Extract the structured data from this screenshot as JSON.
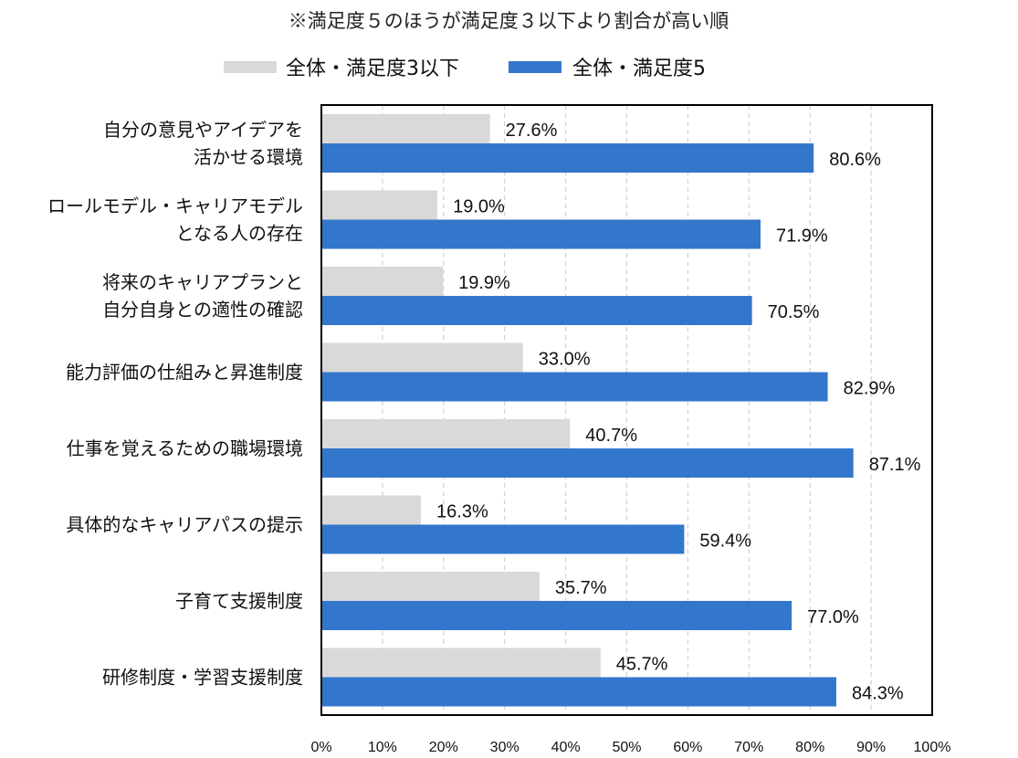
{
  "chart_data": {
    "type": "bar",
    "orientation": "horizontal",
    "note": "※満足度５のほうが満足度３以下より割合が高い順",
    "legend_position": "top",
    "categories": [
      [
        "自分の意見やアイデアを",
        "活かせる環境"
      ],
      [
        "ロールモデル・キャリアモデル",
        "となる人の存在"
      ],
      [
        "将来のキャリアプランと",
        "自分自身との適性の確認"
      ],
      [
        "能力評価の仕組みと昇進制度"
      ],
      [
        "仕事を覚えるための職場環境"
      ],
      [
        "具体的なキャリアパスの提示"
      ],
      [
        "子育て支援制度"
      ],
      [
        "研修制度・学習支援制度"
      ]
    ],
    "series": [
      {
        "name": "全体・満足度3以下",
        "color": "#d9d9d9",
        "values": [
          27.6,
          19.0,
          19.9,
          33.0,
          40.7,
          16.3,
          35.7,
          45.7
        ],
        "labels": [
          "27.6%",
          "19.0%",
          "19.9%",
          "33.0%",
          "40.7%",
          "16.3%",
          "35.7%",
          "45.7%"
        ]
      },
      {
        "name": "全体・満足度5",
        "color": "#3377cc",
        "values": [
          80.6,
          71.9,
          70.5,
          82.9,
          87.1,
          59.4,
          77.0,
          84.3
        ],
        "labels": [
          "80.6%",
          "71.9%",
          "70.5%",
          "82.9%",
          "87.1%",
          "59.4%",
          "77.0%",
          "84.3%"
        ]
      }
    ],
    "xlim": [
      0,
      100
    ],
    "xticks": [
      0,
      10,
      20,
      30,
      40,
      50,
      60,
      70,
      80,
      90,
      100
    ],
    "xtick_labels": [
      "0%",
      "10%",
      "20%",
      "30%",
      "40%",
      "50%",
      "60%",
      "70%",
      "80%",
      "90%",
      "100%"
    ],
    "grid": "vertical-dashed",
    "xlabel": "",
    "ylabel": ""
  }
}
